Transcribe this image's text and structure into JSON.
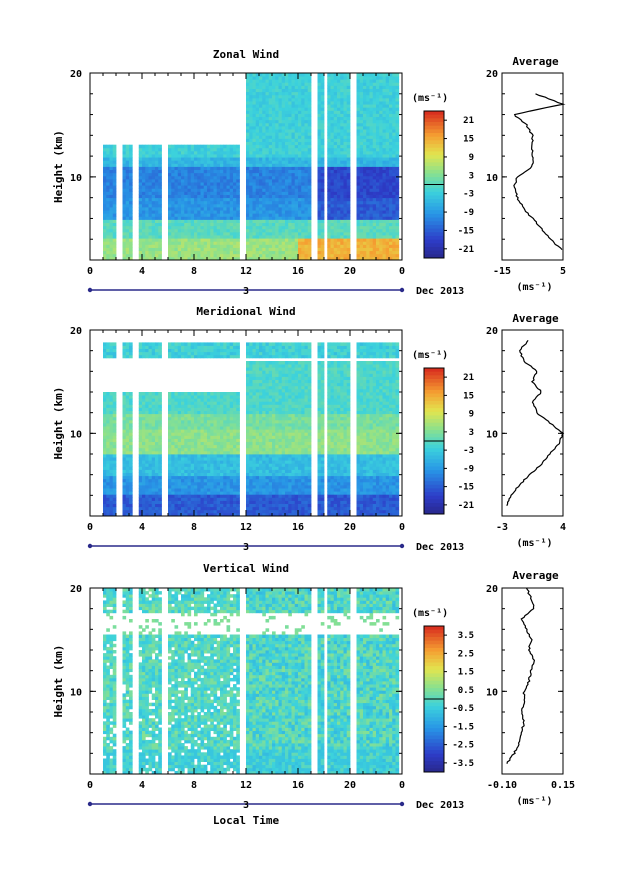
{
  "chart_data": [
    {
      "type": "heatmap",
      "title": "Zonal Wind",
      "ylabel": "Height (km)",
      "y_ticks": [
        "20",
        "10"
      ],
      "ylim": [
        2,
        20
      ],
      "x_ticks": [
        "0",
        "4",
        "8",
        "12",
        "16",
        "20",
        "0"
      ],
      "xlim": [
        0,
        24
      ],
      "date_day": "3",
      "date_label": "Dec 2013",
      "colorbar": {
        "unit_label": "(ms⁻¹)",
        "tick_labels": [
          "21",
          "15",
          "9",
          "3",
          "-3",
          "-9",
          "-15",
          "-21"
        ],
        "range": [
          -24,
          24
        ]
      },
      "average_profile": {
        "title": "Average",
        "xlabel": "(ms⁻¹)",
        "x_ticks": [
          "-15",
          "5"
        ],
        "xlim": [
          -15,
          5
        ],
        "y_ticks": [
          "20",
          "10"
        ],
        "height_km": [
          3,
          4,
          5,
          6,
          7,
          8,
          9,
          10,
          11,
          12,
          13,
          14,
          15,
          16,
          17,
          18
        ],
        "wind": [
          4.5,
          1,
          -2,
          -5,
          -8,
          -10,
          -11,
          -10,
          -5,
          -5,
          -5,
          -5,
          -7,
          -11,
          5,
          -4
        ]
      }
    },
    {
      "type": "heatmap",
      "title": "Meridional Wind",
      "ylabel": "Height (km)",
      "y_ticks": [
        "20",
        "10"
      ],
      "ylim": [
        2,
        20
      ],
      "x_ticks": [
        "0",
        "4",
        "8",
        "12",
        "16",
        "20",
        "0"
      ],
      "xlim": [
        0,
        24
      ],
      "date_day": "3",
      "date_label": "Dec 2013",
      "colorbar": {
        "unit_label": "(ms⁻¹)",
        "tick_labels": [
          "21",
          "15",
          "9",
          "3",
          "-3",
          "-9",
          "-15",
          "-21"
        ],
        "range": [
          -24,
          24
        ]
      },
      "average_profile": {
        "title": "Average",
        "xlabel": "(ms⁻¹)",
        "x_ticks": [
          "-3",
          "4"
        ],
        "xlim": [
          -3,
          4
        ],
        "y_ticks": [
          "20",
          "10"
        ],
        "height_km": [
          3,
          4,
          5,
          6,
          7,
          8,
          9,
          10,
          11,
          12,
          13,
          14,
          15,
          16,
          17,
          18,
          19
        ],
        "wind": [
          -2.5,
          -2,
          -1,
          0.2,
          1.5,
          2.5,
          3.5,
          4,
          2.5,
          1,
          0.5,
          1.5,
          0.5,
          1,
          -0.5,
          -1,
          0
        ]
      }
    },
    {
      "type": "heatmap",
      "title": "Vertical Wind",
      "ylabel": "Height (km)",
      "y_ticks": [
        "20",
        "10"
      ],
      "ylim": [
        2,
        20
      ],
      "x_ticks": [
        "0",
        "4",
        "8",
        "12",
        "16",
        "20",
        "0"
      ],
      "xlim": [
        0,
        24
      ],
      "date_day": "3",
      "date_label": "Dec 2013",
      "xlabel": "Local Time",
      "colorbar": {
        "unit_label": "(ms⁻¹)",
        "tick_labels": [
          "3.5",
          "2.5",
          "1.5",
          "0.5",
          "-0.5",
          "-1.5",
          "-2.5",
          "-3.5"
        ],
        "range": [
          -4,
          4
        ]
      },
      "average_profile": {
        "title": "Average",
        "xlabel": "(ms⁻¹)",
        "x_ticks": [
          "-0.10",
          "0.15"
        ],
        "xlim": [
          -0.1,
          0.15
        ],
        "y_ticks": [
          "20",
          "10"
        ],
        "height_km": [
          3,
          4,
          5,
          6,
          7,
          8,
          9,
          10,
          11,
          12,
          13,
          14,
          15,
          16,
          17,
          18,
          19,
          20
        ],
        "wind": [
          -0.08,
          -0.05,
          -0.03,
          -0.02,
          -0.01,
          -0.02,
          -0.01,
          -0.01,
          0.01,
          0.02,
          0.03,
          0.01,
          0.02,
          0.0,
          -0.02,
          0.03,
          0.02,
          0.0
        ]
      }
    }
  ]
}
